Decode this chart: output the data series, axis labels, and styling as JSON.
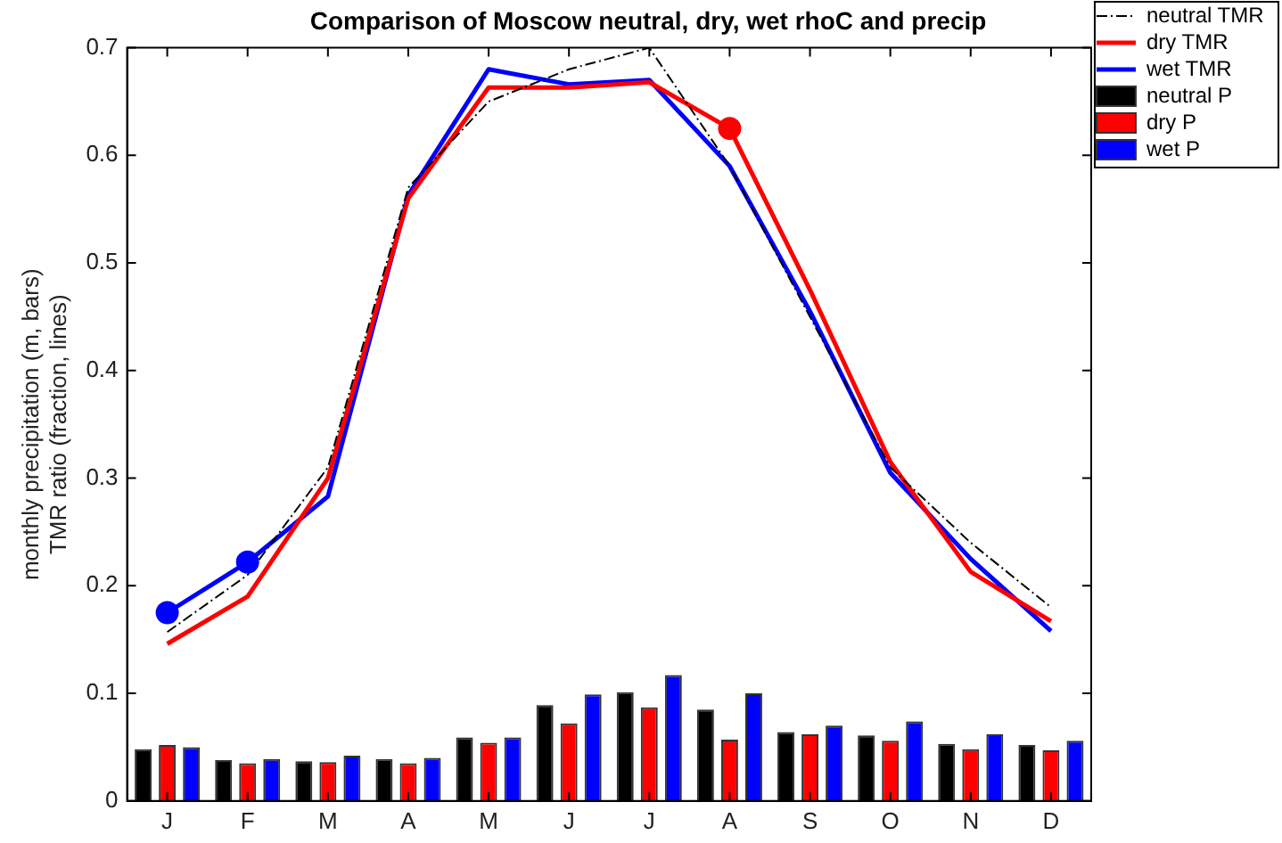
{
  "chart_data": {
    "type": "line",
    "title": "Comparison of Moscow neutral, dry, wet rhoC and precip",
    "ylabel": "monthly precipitation (m, bars)\nTMR ratio (fraction, lines)",
    "categories": [
      "J",
      "F",
      "M",
      "A",
      "M",
      "J",
      "J",
      "A",
      "S",
      "O",
      "N",
      "D"
    ],
    "ylim": [
      0,
      0.7
    ],
    "yticks": [
      0,
      0.1,
      0.2,
      0.3,
      0.4,
      0.5,
      0.6,
      0.7
    ],
    "grid": false,
    "legend": "top right",
    "series": [
      {
        "name": "neutral TMR",
        "color": "#000000",
        "line_style": "dashed",
        "values": [
          0.157,
          0.21,
          0.31,
          0.57,
          0.65,
          0.68,
          0.7,
          0.59,
          0.45,
          0.31,
          0.24,
          0.18
        ]
      },
      {
        "name": "dry TMR",
        "color": "#ff0000",
        "values": [
          0.146,
          0.19,
          0.3,
          0.56,
          0.663,
          0.663,
          0.668,
          0.625,
          0.475,
          0.315,
          0.213,
          0.167
        ]
      },
      {
        "name": "wet TMR",
        "color": "#0000ff",
        "values": [
          0.175,
          0.222,
          0.283,
          0.563,
          0.68,
          0.666,
          0.67,
          0.59,
          0.455,
          0.305,
          0.225,
          0.158
        ]
      },
      {
        "name": "neutral P",
        "type": "bar",
        "color": "#000000",
        "values": [
          0.048,
          0.038,
          0.037,
          0.039,
          0.059,
          0.089,
          0.101,
          0.085,
          0.064,
          0.061,
          0.053,
          0.052
        ]
      },
      {
        "name": "dry P",
        "type": "bar",
        "color": "#ff0000",
        "values": [
          0.052,
          0.035,
          0.036,
          0.035,
          0.054,
          0.072,
          0.087,
          0.057,
          0.062,
          0.056,
          0.048,
          0.047
        ]
      },
      {
        "name": "wet P",
        "type": "bar",
        "color": "#0000ff",
        "values": [
          0.05,
          0.039,
          0.042,
          0.04,
          0.059,
          0.099,
          0.117,
          0.1,
          0.07,
          0.074,
          0.062,
          0.056
        ]
      },
      {
        "type": "scatter",
        "marker": "circle",
        "color": "#0000ff",
        "values": [
          0.175,
          0.222,
          null,
          null,
          null,
          null,
          null,
          null,
          null,
          null,
          null,
          null
        ]
      },
      {
        "type": "scatter",
        "marker": "circle",
        "color": "#ff0000",
        "values": [
          null,
          null,
          null,
          null,
          null,
          null,
          null,
          0.625,
          null,
          null,
          null,
          null
        ]
      }
    ]
  }
}
